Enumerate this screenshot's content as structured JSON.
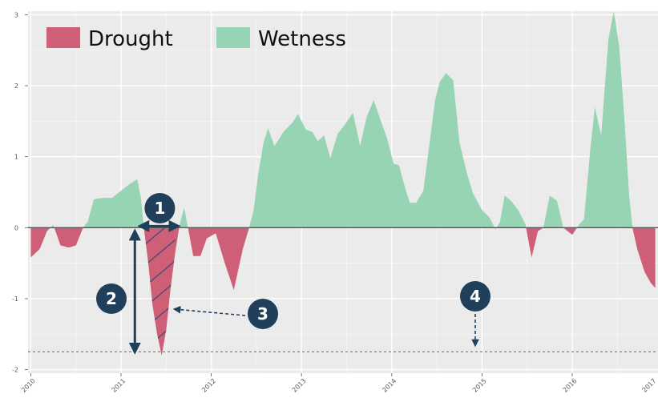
{
  "chart_data": {
    "type": "area",
    "title": "",
    "xlabel": "",
    "ylabel": "",
    "xlim": [
      2009.97,
      2016.95
    ],
    "ylim": [
      -2.05,
      3.05
    ],
    "x_ticks": [
      "2010",
      "2011",
      "2012",
      "2013",
      "2014",
      "2015",
      "2016",
      "2017"
    ],
    "y_ticks": [
      "3",
      "2",
      "1",
      "0",
      "-1",
      "-2"
    ],
    "grid": true,
    "legend_position": "top-left",
    "baseline": 0,
    "threshold": -1.75,
    "series": [
      {
        "name": "Drought",
        "color": "#cf5f77",
        "fill_rule": "values below 0",
        "points": [
          [
            2010.0,
            -0.42
          ],
          [
            2010.1,
            -0.3
          ],
          [
            2010.18,
            -0.05
          ],
          [
            2010.25,
            0.04
          ],
          [
            2010.33,
            -0.25
          ],
          [
            2010.42,
            -0.28
          ],
          [
            2010.5,
            -0.25
          ],
          [
            2010.58,
            0.0
          ],
          [
            2010.63,
            0.08
          ],
          [
            2010.7,
            0.4
          ],
          [
            2010.8,
            0.42
          ],
          [
            2010.9,
            0.42
          ],
          [
            2011.0,
            0.52
          ],
          [
            2011.1,
            0.62
          ],
          [
            2011.18,
            0.68
          ],
          [
            2011.22,
            0.42
          ],
          [
            2011.26,
            -0.08
          ],
          [
            2011.3,
            -0.48
          ],
          [
            2011.35,
            -1.1
          ],
          [
            2011.4,
            -1.5
          ],
          [
            2011.45,
            -1.8
          ],
          [
            2011.5,
            -1.45
          ],
          [
            2011.55,
            -0.85
          ],
          [
            2011.6,
            -0.35
          ],
          [
            2011.65,
            0.05
          ],
          [
            2011.7,
            0.28
          ],
          [
            2011.75,
            -0.05
          ],
          [
            2011.8,
            -0.4
          ],
          [
            2011.88,
            -0.4
          ],
          [
            2011.95,
            -0.15
          ],
          [
            2012.05,
            -0.08
          ],
          [
            2012.15,
            -0.5
          ],
          [
            2012.25,
            -0.88
          ],
          [
            2012.35,
            -0.3
          ],
          [
            2012.42,
            0.0
          ],
          [
            2012.47,
            0.25
          ],
          [
            2012.52,
            0.75
          ],
          [
            2012.58,
            1.2
          ],
          [
            2012.63,
            1.4
          ],
          [
            2012.7,
            1.15
          ],
          [
            2012.8,
            1.35
          ],
          [
            2012.9,
            1.48
          ],
          [
            2012.96,
            1.6
          ],
          [
            2013.05,
            1.38
          ],
          [
            2013.12,
            1.35
          ],
          [
            2013.18,
            1.22
          ],
          [
            2013.25,
            1.3
          ],
          [
            2013.32,
            0.98
          ],
          [
            2013.4,
            1.32
          ],
          [
            2013.48,
            1.45
          ],
          [
            2013.57,
            1.62
          ],
          [
            2013.65,
            1.15
          ],
          [
            2013.72,
            1.55
          ],
          [
            2013.8,
            1.8
          ],
          [
            2013.88,
            1.5
          ],
          [
            2013.95,
            1.25
          ],
          [
            2014.02,
            0.9
          ],
          [
            2014.08,
            0.88
          ],
          [
            2014.15,
            0.55
          ],
          [
            2014.2,
            0.35
          ],
          [
            2014.27,
            0.35
          ],
          [
            2014.35,
            0.52
          ],
          [
            2014.42,
            1.2
          ],
          [
            2014.48,
            1.8
          ],
          [
            2014.53,
            2.05
          ],
          [
            2014.6,
            2.18
          ],
          [
            2014.68,
            2.08
          ],
          [
            2014.75,
            1.2
          ],
          [
            2014.83,
            0.78
          ],
          [
            2014.9,
            0.48
          ],
          [
            2015.0,
            0.25
          ],
          [
            2015.08,
            0.15
          ],
          [
            2015.15,
            -0.02
          ],
          [
            2015.2,
            0.08
          ],
          [
            2015.25,
            0.45
          ],
          [
            2015.32,
            0.38
          ],
          [
            2015.4,
            0.25
          ],
          [
            2015.48,
            0.05
          ],
          [
            2015.55,
            -0.42
          ],
          [
            2015.62,
            -0.05
          ],
          [
            2015.68,
            0.0
          ],
          [
            2015.75,
            0.45
          ],
          [
            2015.83,
            0.38
          ],
          [
            2015.9,
            0.0
          ],
          [
            2016.0,
            -0.1
          ],
          [
            2016.08,
            0.05
          ],
          [
            2016.13,
            0.12
          ],
          [
            2016.2,
            1.1
          ],
          [
            2016.25,
            1.7
          ],
          [
            2016.32,
            1.3
          ],
          [
            2016.4,
            2.65
          ],
          [
            2016.46,
            3.05
          ],
          [
            2016.52,
            2.55
          ],
          [
            2016.58,
            1.5
          ],
          [
            2016.63,
            0.45
          ],
          [
            2016.67,
            -0.02
          ],
          [
            2016.72,
            -0.3
          ],
          [
            2016.8,
            -0.62
          ],
          [
            2016.87,
            -0.78
          ],
          [
            2016.92,
            -0.85
          ]
        ]
      },
      {
        "name": "Wetness",
        "color": "#96d4b3",
        "fill_rule": "values above 0"
      }
    ],
    "annotations": [
      "1",
      "2",
      "3",
      "4"
    ]
  }
}
